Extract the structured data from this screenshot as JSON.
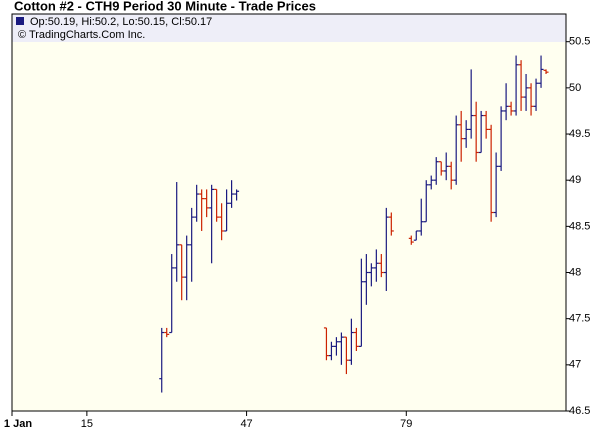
{
  "chart_data": {
    "type": "ohlc",
    "title": "Cotton #2 - CTH9 Period 30 Minute - Trade Prices",
    "legend_text": "Op:50.19, Hi:50.2, Lo:50.15, Cl:50.17",
    "copyright": "© TradingCharts.Com Inc.",
    "up_color": "#1a1a80",
    "down_color": "#cc2200",
    "background": "#fffff0",
    "xlim": [
      0,
      111
    ],
    "xticks": [
      {
        "value": 0,
        "label": "1 Jan"
      },
      15,
      47,
      79
    ],
    "ylim": [
      46.5,
      50.8
    ],
    "yticks": [
      46.5,
      47,
      47.5,
      48,
      48.5,
      49,
      49.5,
      50,
      50.5
    ],
    "x": [
      30,
      31,
      32,
      33,
      34,
      35,
      36,
      37,
      38,
      39,
      40,
      41,
      42,
      43,
      44,
      45,
      63,
      64,
      65,
      66,
      67,
      68,
      69,
      70,
      71,
      72,
      73,
      74,
      75,
      76,
      80,
      81,
      82,
      83,
      84,
      85,
      86,
      87,
      88,
      89,
      90,
      91,
      92,
      93,
      94,
      95,
      96,
      97,
      98,
      99,
      100,
      101,
      102,
      103,
      104,
      105,
      106,
      107
    ],
    "open": [
      46.85,
      47.35,
      47.35,
      48.05,
      48.3,
      47.95,
      48.3,
      48.6,
      48.85,
      48.8,
      48.7,
      48.9,
      48.6,
      48.45,
      48.75,
      48.85,
      47.4,
      47.1,
      47.2,
      47.25,
      47.3,
      47.05,
      47.35,
      47.2,
      47.9,
      48.0,
      48.05,
      48.1,
      48.0,
      48.6,
      48.37,
      48.35,
      48.45,
      48.55,
      48.95,
      49.0,
      49.2,
      49.1,
      49.15,
      49.0,
      49.6,
      49.45,
      49.55,
      49.7,
      49.3,
      49.7,
      49.55,
      48.65,
      49.15,
      49.75,
      49.8,
      49.75,
      50.25,
      49.9,
      50.0,
      49.8,
      50.05,
      50.19
    ],
    "high": [
      47.4,
      47.4,
      48.2,
      48.98,
      48.3,
      48.4,
      48.7,
      48.95,
      48.9,
      48.9,
      48.95,
      48.9,
      48.75,
      48.9,
      49.0,
      48.9,
      47.4,
      47.25,
      47.3,
      47.35,
      47.3,
      47.5,
      47.4,
      48.15,
      48.2,
      48.1,
      48.25,
      48.2,
      48.7,
      48.65,
      48.4,
      48.45,
      48.8,
      49.0,
      49.05,
      49.25,
      49.2,
      49.3,
      49.2,
      49.7,
      49.75,
      49.65,
      50.2,
      49.85,
      49.75,
      49.75,
      49.6,
      49.3,
      49.8,
      50.05,
      49.85,
      50.35,
      50.3,
      50.15,
      50.05,
      50.1,
      50.35,
      50.2
    ],
    "low": [
      46.7,
      47.3,
      47.35,
      47.9,
      47.7,
      47.7,
      47.9,
      48.55,
      48.45,
      48.6,
      48.1,
      48.55,
      48.35,
      48.45,
      48.7,
      48.78,
      47.05,
      47.05,
      47.1,
      47.0,
      46.9,
      47.0,
      47.15,
      47.2,
      47.65,
      47.85,
      47.9,
      47.95,
      47.8,
      48.4,
      48.3,
      48.35,
      48.4,
      48.55,
      48.9,
      48.95,
      49.05,
      49.0,
      48.9,
      48.95,
      49.2,
      49.35,
      49.45,
      49.2,
      49.3,
      49.45,
      48.55,
      48.6,
      49.1,
      49.65,
      49.7,
      49.7,
      49.75,
      49.75,
      49.7,
      49.75,
      50.0,
      50.15
    ],
    "close": [
      47.35,
      47.33,
      48.05,
      48.3,
      47.95,
      48.3,
      48.6,
      48.85,
      48.8,
      48.7,
      48.9,
      48.6,
      48.45,
      48.75,
      48.85,
      48.88,
      47.1,
      47.2,
      47.25,
      47.3,
      47.05,
      47.35,
      47.2,
      47.9,
      48.0,
      48.05,
      48.1,
      48.0,
      48.6,
      48.45,
      48.33,
      48.45,
      48.55,
      48.95,
      49.0,
      49.2,
      49.1,
      49.15,
      49.0,
      49.6,
      49.45,
      49.55,
      49.7,
      49.3,
      49.7,
      49.55,
      48.65,
      49.15,
      49.75,
      49.8,
      49.75,
      50.25,
      49.9,
      50.0,
      49.8,
      50.05,
      50.2,
      50.17
    ]
  }
}
